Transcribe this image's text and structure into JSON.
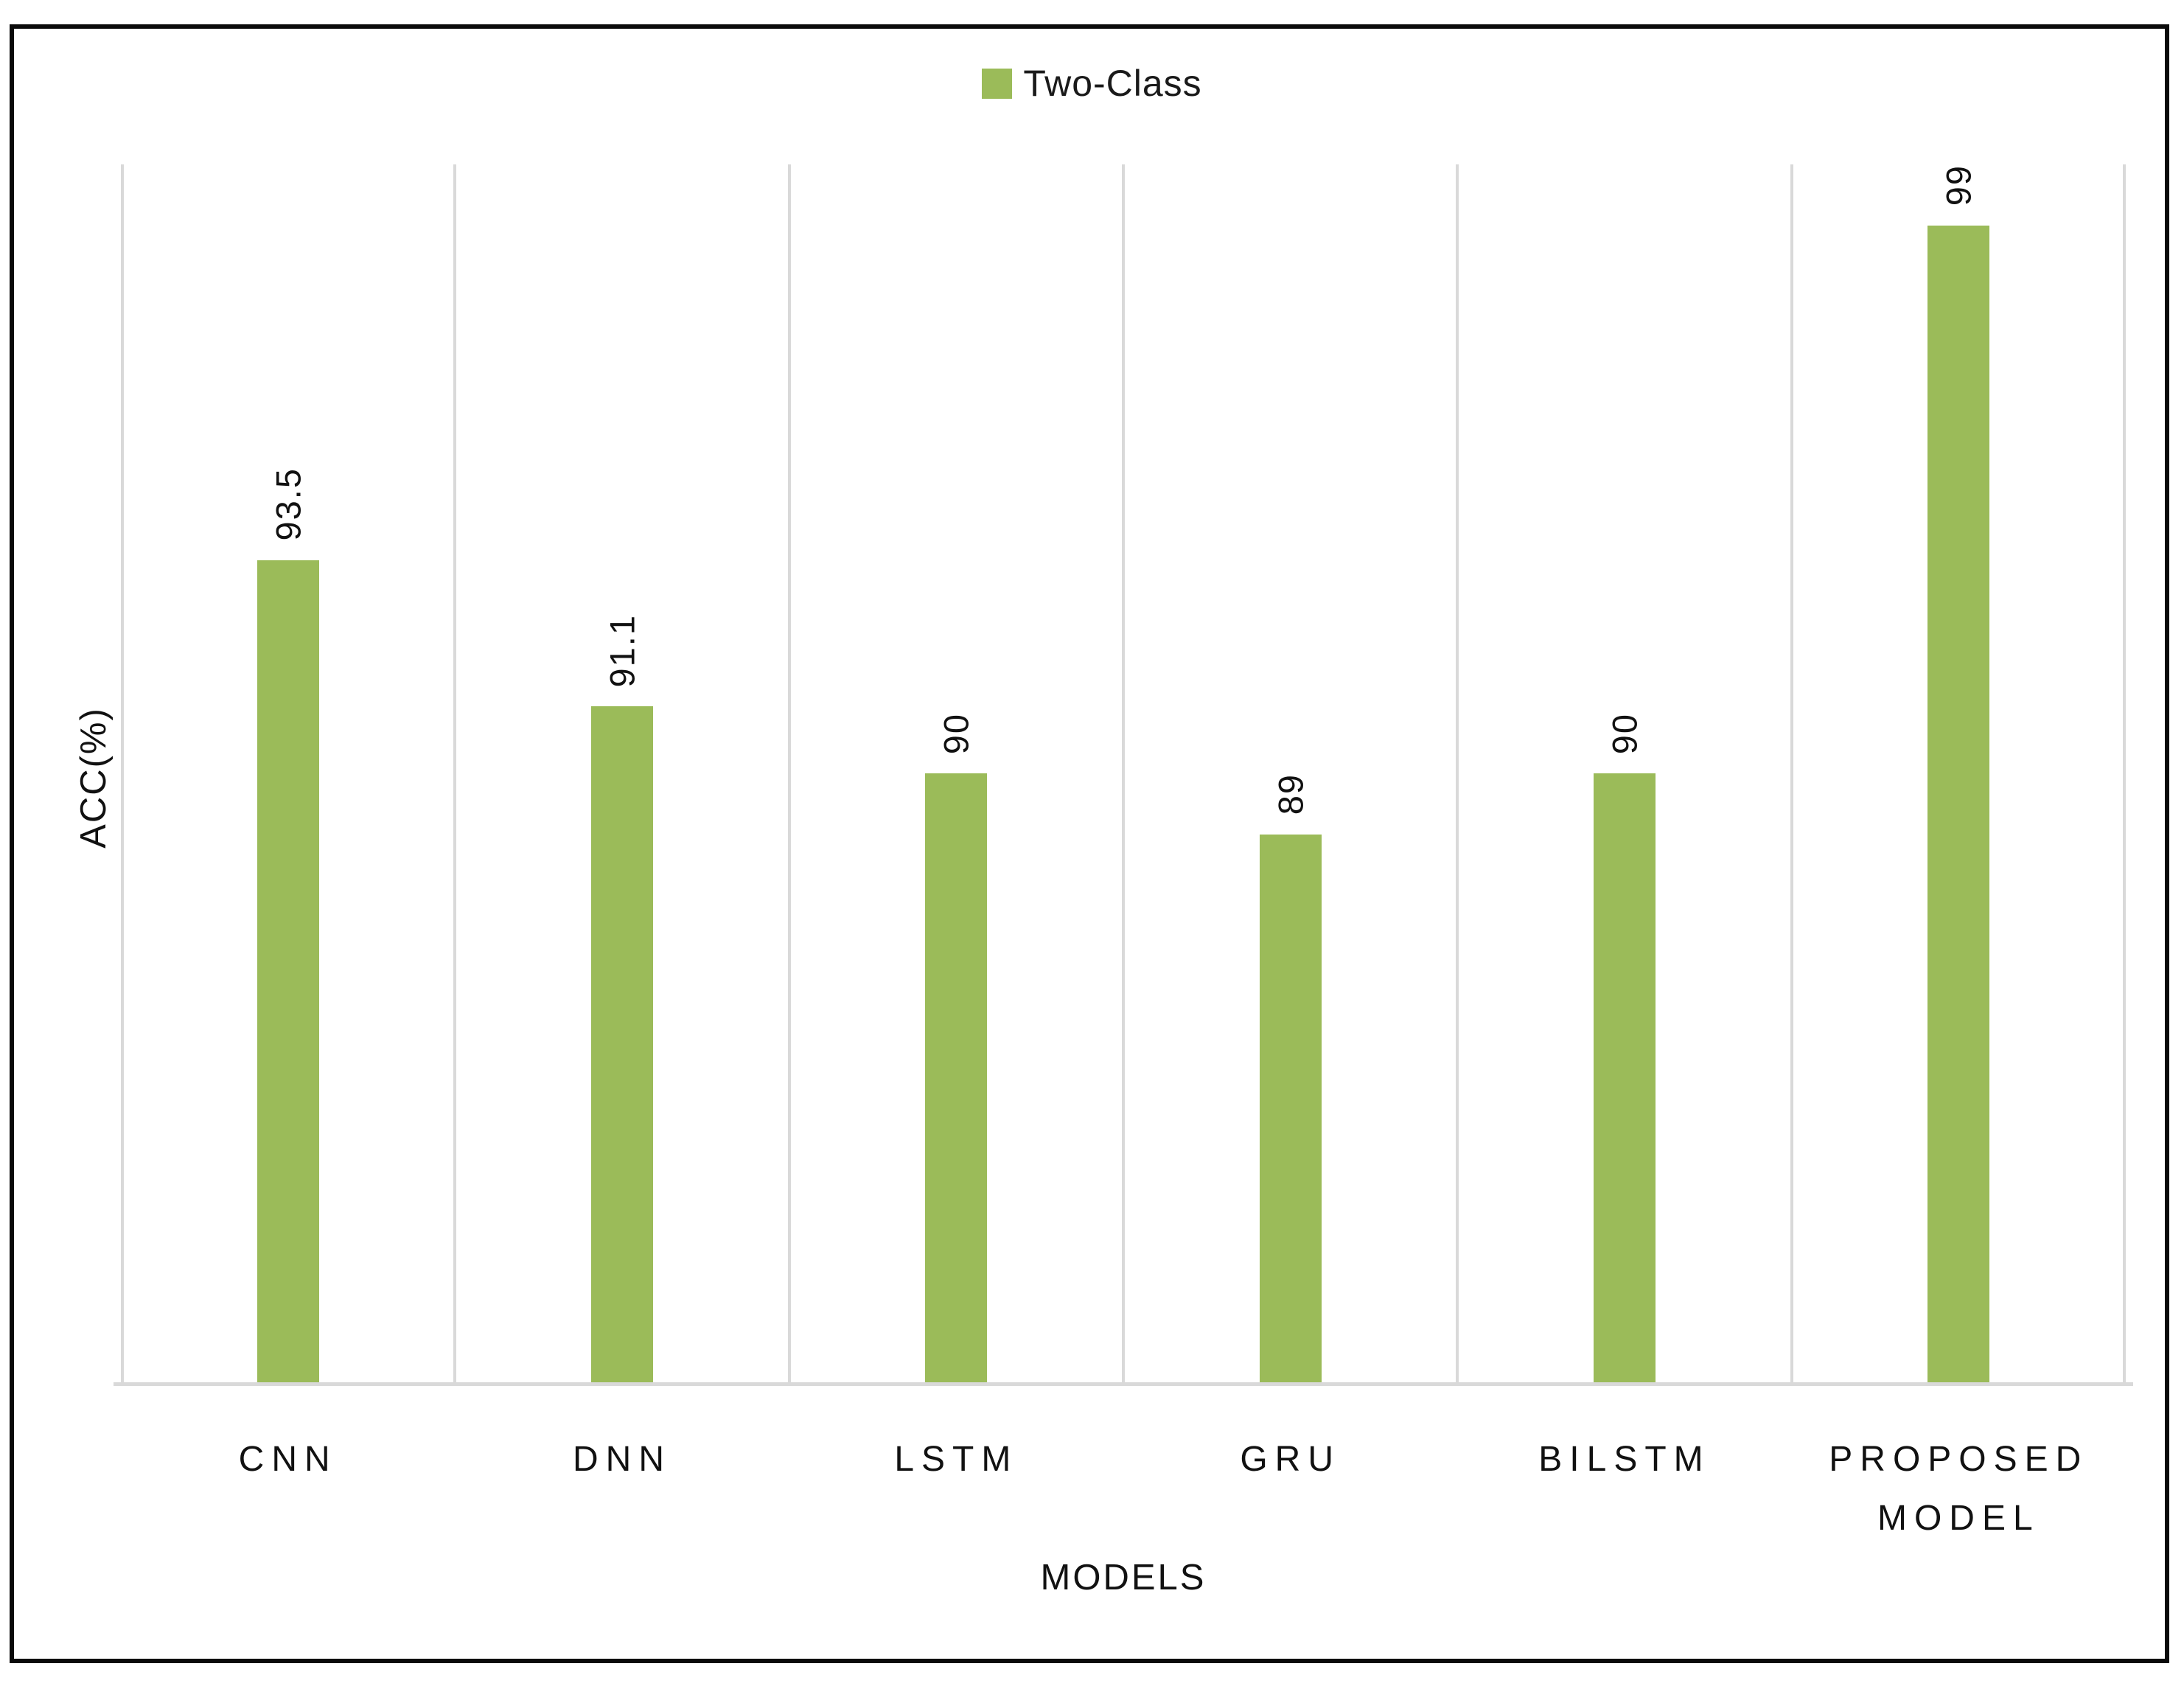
{
  "chart_data": {
    "type": "bar",
    "title": "",
    "legend": {
      "label": "Two-Class",
      "position": "top-center",
      "marker": "square"
    },
    "categories": [
      "CNN",
      "DNN",
      "LSTM",
      "GRU",
      "BILSTM",
      "PROPOSED MODEL"
    ],
    "series": [
      {
        "name": "Two-Class",
        "values": [
          93.5,
          91.1,
          90,
          89,
          90,
          99
        ]
      }
    ],
    "data_labels": [
      "93.5",
      "91.1",
      "90",
      "89",
      "90",
      "99"
    ],
    "data_label_rotation_deg": 90,
    "xlabel": "MODELS",
    "ylabel": "ACC(%)",
    "ylim": [
      80,
      100
    ],
    "y_axis_ticks_visible": false,
    "grid": "vertical category-boundary gridlines",
    "colors": {
      "bar": "#9BBB59",
      "gridline": "#D9D9D9",
      "axis_line": "#D9D9D9",
      "text": "#111111",
      "frame_border": "#0A0A0A",
      "background": "#FFFFFF"
    }
  }
}
